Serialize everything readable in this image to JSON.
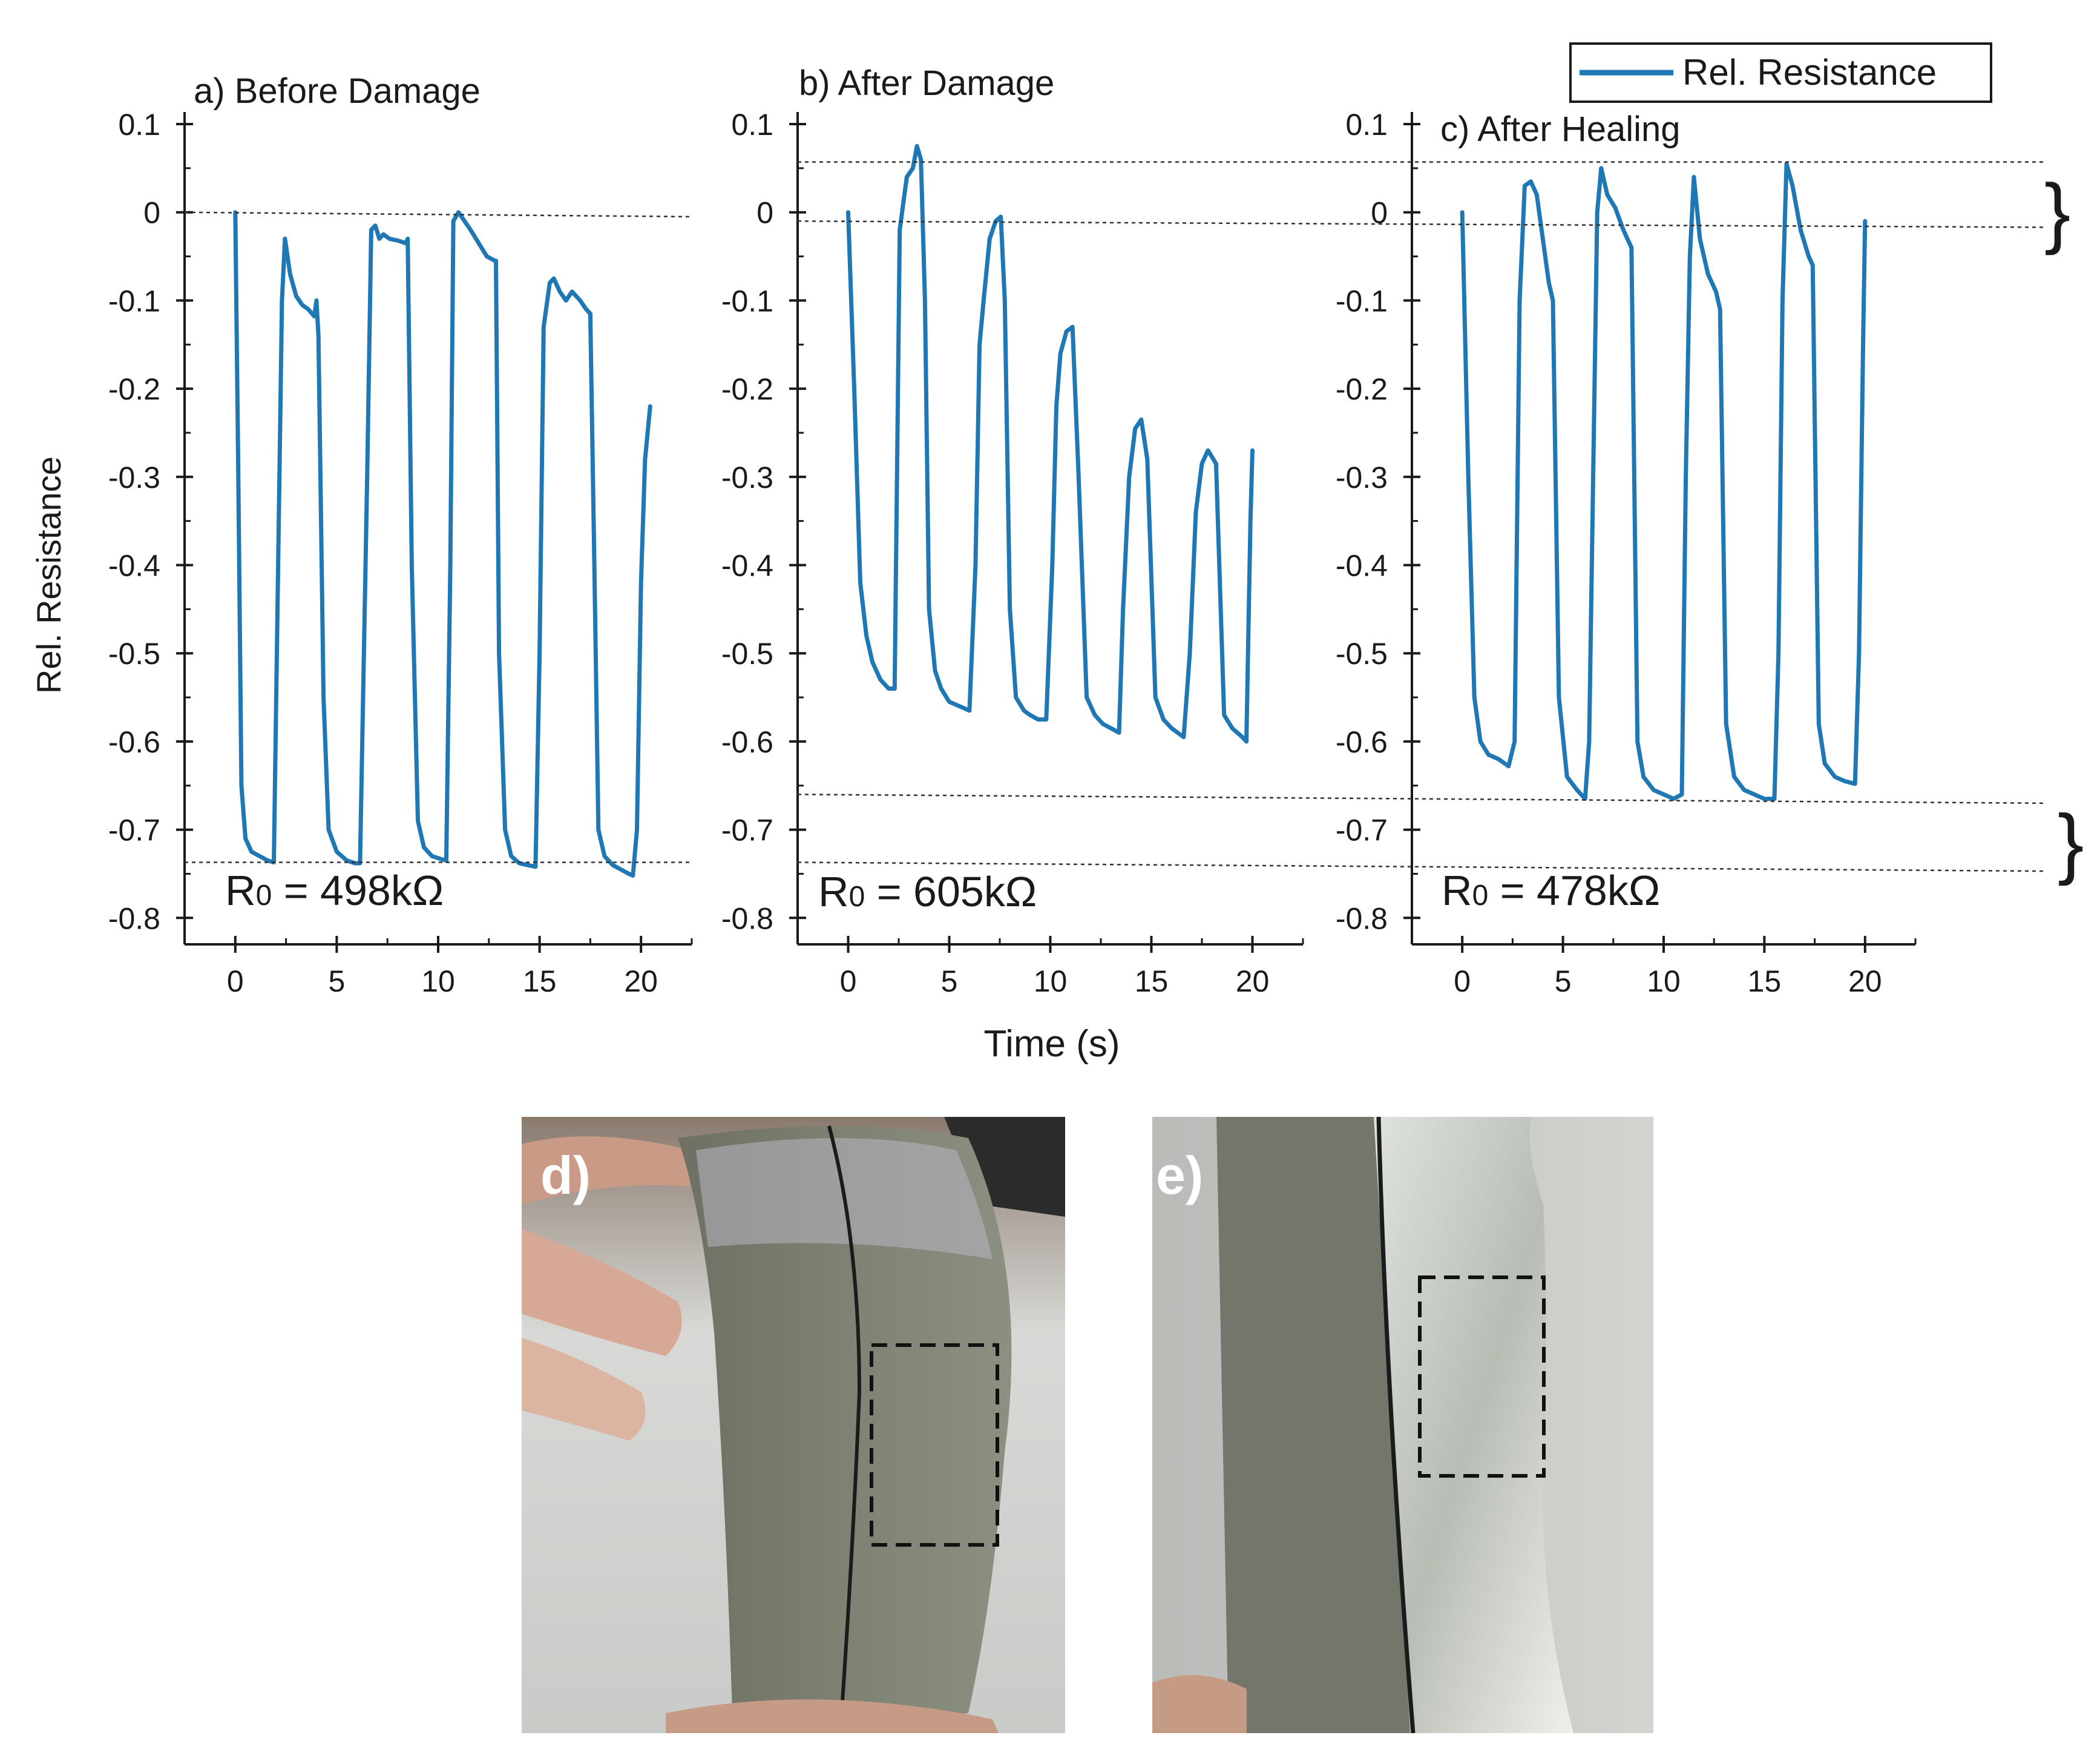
{
  "figure": {
    "time_label": "Time (s)",
    "y_label": "Rel. Resistance",
    "legend_label": "Rel. Resistance",
    "line_color": "#1f77b4",
    "brace_glyph": "}",
    "photos": [
      {
        "label": "d)",
        "description": "Bent gray composite strip with black healed seam; dashed box marks region of interest; held by fingers"
      },
      {
        "label": "e)",
        "description": "Close-up side view of strip showing dark seam and glossy translucent healed region with dashed box"
      }
    ]
  },
  "chart_data": [
    {
      "type": "line",
      "title": "a) Before Damage",
      "annotation_prefix": "R",
      "annotation_sub": "0",
      "annotation_value": " = 498kΩ",
      "xlim": [
        -2.5,
        22.5
      ],
      "ylim": [
        -0.83,
        0.1
      ],
      "xticks": [
        0,
        5,
        10,
        15,
        20
      ],
      "yticks": [
        0.1,
        0,
        -0.1,
        -0.2,
        -0.3,
        -0.4,
        -0.5,
        -0.6,
        -0.7,
        -0.8
      ],
      "ytick_labels": [
        "0.1",
        "0",
        "-0.1",
        "-0.2",
        "-0.3",
        "-0.4",
        "-0.5",
        "-0.6",
        "-0.7",
        "-0.8"
      ],
      "xtick_labels": [
        "0",
        "5",
        "10",
        "15",
        "20"
      ],
      "series": [
        {
          "name": "Rel. Resistance",
          "x": [
            0,
            0.15,
            0.3,
            0.5,
            0.8,
            1.2,
            1.6,
            1.9,
            2.3,
            2.45,
            2.7,
            3.0,
            3.3,
            3.6,
            3.9,
            4.0,
            4.1,
            4.35,
            4.6,
            5.0,
            5.5,
            5.9,
            6.15,
            6.5,
            6.7,
            6.9,
            7.1,
            7.3,
            7.6,
            8.0,
            8.4,
            8.5,
            8.7,
            9.0,
            9.3,
            9.7,
            10.1,
            10.4,
            10.6,
            10.75,
            11.0,
            11.3,
            11.6,
            12.0,
            12.4,
            12.8,
            12.85,
            13.0,
            13.3,
            13.6,
            14.0,
            14.4,
            14.8,
            15.0,
            15.2,
            15.5,
            15.7,
            16.0,
            16.3,
            16.6,
            17.0,
            17.3,
            17.5,
            17.7,
            17.9,
            18.2,
            18.6,
            19.0,
            19.4,
            19.6,
            19.8,
            20.0,
            20.2,
            20.45
          ],
          "y": [
            0.0,
            -0.3,
            -0.65,
            -0.71,
            -0.725,
            -0.73,
            -0.735,
            -0.737,
            -0.1,
            -0.03,
            -0.07,
            -0.095,
            -0.105,
            -0.11,
            -0.118,
            -0.1,
            -0.14,
            -0.55,
            -0.7,
            -0.725,
            -0.735,
            -0.738,
            -0.738,
            -0.3,
            -0.02,
            -0.015,
            -0.03,
            -0.025,
            -0.03,
            -0.032,
            -0.035,
            -0.03,
            -0.4,
            -0.69,
            -0.72,
            -0.73,
            -0.733,
            -0.735,
            -0.4,
            -0.01,
            0.0,
            -0.01,
            -0.02,
            -0.035,
            -0.05,
            -0.055,
            -0.055,
            -0.5,
            -0.7,
            -0.73,
            -0.738,
            -0.74,
            -0.742,
            -0.5,
            -0.13,
            -0.08,
            -0.075,
            -0.09,
            -0.1,
            -0.09,
            -0.1,
            -0.11,
            -0.115,
            -0.4,
            -0.7,
            -0.73,
            -0.74,
            -0.745,
            -0.75,
            -0.752,
            -0.7,
            -0.42,
            -0.28,
            -0.22
          ]
        }
      ]
    },
    {
      "type": "line",
      "title": "b) After Damage",
      "annotation_prefix": "R",
      "annotation_sub": "0",
      "annotation_value": " = 605kΩ",
      "xlim": [
        -2.5,
        22.5
      ],
      "ylim": [
        -0.83,
        0.1
      ],
      "xticks": [
        0,
        5,
        10,
        15,
        20
      ],
      "yticks": [
        0.1,
        0,
        -0.1,
        -0.2,
        -0.3,
        -0.4,
        -0.5,
        -0.6,
        -0.7,
        -0.8
      ],
      "ytick_labels": [
        "0.1",
        "0",
        "-0.1",
        "-0.2",
        "-0.3",
        "-0.4",
        "-0.5",
        "-0.6",
        "-0.7",
        "-0.8"
      ],
      "xtick_labels": [
        "0",
        "5",
        "10",
        "15",
        "20"
      ],
      "series": [
        {
          "name": "Rel. Resistance",
          "x": [
            0,
            0.3,
            0.6,
            0.9,
            1.2,
            1.6,
            2.0,
            2.3,
            2.55,
            2.9,
            3.2,
            3.4,
            3.6,
            3.8,
            4.0,
            4.3,
            4.6,
            5.0,
            5.5,
            6.0,
            6.3,
            6.5,
            6.7,
            7.0,
            7.3,
            7.55,
            7.75,
            8.0,
            8.3,
            8.7,
            9.0,
            9.4,
            9.8,
            10.1,
            10.3,
            10.5,
            10.8,
            11.1,
            11.4,
            11.8,
            12.2,
            12.6,
            13.0,
            13.4,
            13.6,
            13.9,
            14.2,
            14.5,
            14.8,
            15.2,
            15.6,
            16.0,
            16.3,
            16.6,
            16.9,
            17.2,
            17.5,
            17.8,
            18.2,
            18.6,
            19.0,
            19.5,
            19.7,
            19.9,
            20.0
          ],
          "y": [
            0.0,
            -0.2,
            -0.42,
            -0.48,
            -0.51,
            -0.53,
            -0.54,
            -0.54,
            -0.02,
            0.04,
            0.05,
            0.075,
            0.06,
            -0.1,
            -0.45,
            -0.52,
            -0.54,
            -0.555,
            -0.56,
            -0.565,
            -0.4,
            -0.15,
            -0.1,
            -0.03,
            -0.01,
            -0.005,
            -0.1,
            -0.45,
            -0.55,
            -0.565,
            -0.57,
            -0.575,
            -0.575,
            -0.4,
            -0.22,
            -0.16,
            -0.135,
            -0.13,
            -0.3,
            -0.55,
            -0.57,
            -0.58,
            -0.585,
            -0.59,
            -0.45,
            -0.3,
            -0.245,
            -0.235,
            -0.28,
            -0.55,
            -0.575,
            -0.585,
            -0.59,
            -0.595,
            -0.5,
            -0.34,
            -0.285,
            -0.27,
            -0.285,
            -0.57,
            -0.585,
            -0.595,
            -0.6,
            -0.35,
            -0.27
          ]
        }
      ]
    },
    {
      "type": "line",
      "title": "c) After Healing",
      "annotation_prefix": "R",
      "annotation_sub": "0",
      "annotation_value": " = 478kΩ",
      "xlim": [
        -2.5,
        22.5
      ],
      "ylim": [
        -0.83,
        0.1
      ],
      "xticks": [
        0,
        5,
        10,
        15,
        20
      ],
      "yticks": [
        0.1,
        0,
        -0.1,
        -0.2,
        -0.3,
        -0.4,
        -0.5,
        -0.6,
        -0.7,
        -0.8
      ],
      "ytick_labels": [
        "0.1",
        "0",
        "-0.1",
        "-0.2",
        "-0.3",
        "-0.4",
        "-0.5",
        "-0.6",
        "-0.7",
        "-0.8"
      ],
      "xtick_labels": [
        "0",
        "5",
        "10",
        "15",
        "20"
      ],
      "series": [
        {
          "name": "Rel. Resistance",
          "x": [
            0,
            0.3,
            0.6,
            0.9,
            1.3,
            1.8,
            2.3,
            2.6,
            2.85,
            3.1,
            3.4,
            3.7,
            4.0,
            4.3,
            4.5,
            4.8,
            5.2,
            5.7,
            6.1,
            6.3,
            6.5,
            6.7,
            6.9,
            7.2,
            7.6,
            8.0,
            8.4,
            8.7,
            9.0,
            9.5,
            10.0,
            10.5,
            10.9,
            11.1,
            11.3,
            11.5,
            11.8,
            12.2,
            12.6,
            12.8,
            13.1,
            13.5,
            14.0,
            14.5,
            15.0,
            15.5,
            15.7,
            15.9,
            16.1,
            16.4,
            16.8,
            17.2,
            17.4,
            17.7,
            18.0,
            18.5,
            19.0,
            19.5,
            19.7,
            19.9,
            20.0
          ],
          "y": [
            0.0,
            -0.3,
            -0.55,
            -0.6,
            -0.615,
            -0.62,
            -0.628,
            -0.6,
            -0.1,
            0.03,
            0.035,
            0.02,
            -0.03,
            -0.08,
            -0.1,
            -0.55,
            -0.64,
            -0.655,
            -0.665,
            -0.6,
            -0.3,
            0.0,
            0.05,
            0.02,
            0.005,
            -0.02,
            -0.04,
            -0.6,
            -0.64,
            -0.655,
            -0.66,
            -0.665,
            -0.66,
            -0.3,
            -0.05,
            0.04,
            -0.03,
            -0.07,
            -0.09,
            -0.11,
            -0.58,
            -0.64,
            -0.655,
            -0.66,
            -0.665,
            -0.665,
            -0.5,
            -0.1,
            0.055,
            0.03,
            -0.02,
            -0.05,
            -0.06,
            -0.58,
            -0.625,
            -0.64,
            -0.645,
            -0.648,
            -0.5,
            -0.15,
            -0.01
          ]
        }
      ]
    }
  ]
}
